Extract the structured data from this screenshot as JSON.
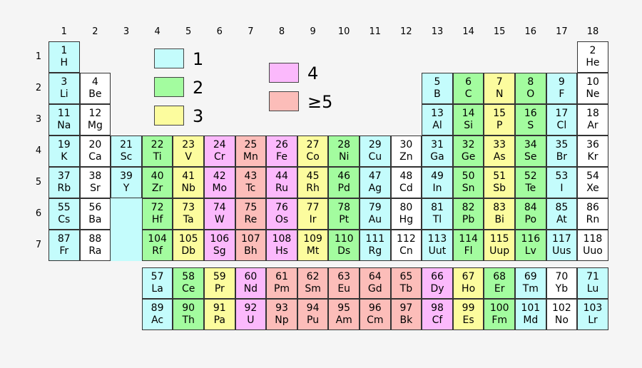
{
  "group_numbers": [
    "1",
    "2",
    "3",
    "4",
    "5",
    "6",
    "7",
    "8",
    "9",
    "10",
    "11",
    "12",
    "13",
    "14",
    "15",
    "16",
    "17",
    "18"
  ],
  "period_numbers": [
    "1",
    "2",
    "3",
    "4",
    "5",
    "6",
    "7"
  ],
  "legend": [
    {
      "label": "1",
      "cat": 1
    },
    {
      "label": "2",
      "cat": 2
    },
    {
      "label": "3",
      "cat": 3
    },
    {
      "label": "4",
      "cat": 4
    },
    {
      "label": "≥5",
      "cat": 5
    }
  ],
  "colors": {
    "0": "#ffffff",
    "1": "#c4fcfc",
    "2": "#a3fc9f",
    "3": "#fcfc9e",
    "4": "#fbb9fc",
    "5": "#fcbdb9"
  },
  "elements": [
    {
      "num": "1",
      "sym": "H",
      "period": 1,
      "group": 1,
      "cat": 1
    },
    {
      "num": "2",
      "sym": "He",
      "period": 1,
      "group": 18,
      "cat": 0
    },
    {
      "num": "3",
      "sym": "Li",
      "period": 2,
      "group": 1,
      "cat": 1
    },
    {
      "num": "4",
      "sym": "Be",
      "period": 2,
      "group": 2,
      "cat": 0
    },
    {
      "num": "5",
      "sym": "B",
      "period": 2,
      "group": 13,
      "cat": 1
    },
    {
      "num": "6",
      "sym": "C",
      "period": 2,
      "group": 14,
      "cat": 2
    },
    {
      "num": "7",
      "sym": "N",
      "period": 2,
      "group": 15,
      "cat": 3
    },
    {
      "num": "8",
      "sym": "O",
      "period": 2,
      "group": 16,
      "cat": 2
    },
    {
      "num": "9",
      "sym": "F",
      "period": 2,
      "group": 17,
      "cat": 1
    },
    {
      "num": "10",
      "sym": "Ne",
      "period": 2,
      "group": 18,
      "cat": 0
    },
    {
      "num": "11",
      "sym": "Na",
      "period": 3,
      "group": 1,
      "cat": 1
    },
    {
      "num": "12",
      "sym": "Mg",
      "period": 3,
      "group": 2,
      "cat": 0
    },
    {
      "num": "13",
      "sym": "Al",
      "period": 3,
      "group": 13,
      "cat": 1
    },
    {
      "num": "14",
      "sym": "Si",
      "period": 3,
      "group": 14,
      "cat": 2
    },
    {
      "num": "15",
      "sym": "P",
      "period": 3,
      "group": 15,
      "cat": 3
    },
    {
      "num": "16",
      "sym": "S",
      "period": 3,
      "group": 16,
      "cat": 2
    },
    {
      "num": "17",
      "sym": "Cl",
      "period": 3,
      "group": 17,
      "cat": 1
    },
    {
      "num": "18",
      "sym": "Ar",
      "period": 3,
      "group": 18,
      "cat": 0
    },
    {
      "num": "19",
      "sym": "K",
      "period": 4,
      "group": 1,
      "cat": 1
    },
    {
      "num": "20",
      "sym": "Ca",
      "period": 4,
      "group": 2,
      "cat": 0
    },
    {
      "num": "21",
      "sym": "Sc",
      "period": 4,
      "group": 3,
      "cat": 1
    },
    {
      "num": "22",
      "sym": "Ti",
      "period": 4,
      "group": 4,
      "cat": 2
    },
    {
      "num": "23",
      "sym": "V",
      "period": 4,
      "group": 5,
      "cat": 3
    },
    {
      "num": "24",
      "sym": "Cr",
      "period": 4,
      "group": 6,
      "cat": 4
    },
    {
      "num": "25",
      "sym": "Mn",
      "period": 4,
      "group": 7,
      "cat": 5
    },
    {
      "num": "26",
      "sym": "Fe",
      "period": 4,
      "group": 8,
      "cat": 4
    },
    {
      "num": "27",
      "sym": "Co",
      "period": 4,
      "group": 9,
      "cat": 3
    },
    {
      "num": "28",
      "sym": "Ni",
      "period": 4,
      "group": 10,
      "cat": 2
    },
    {
      "num": "29",
      "sym": "Cu",
      "period": 4,
      "group": 11,
      "cat": 1
    },
    {
      "num": "30",
      "sym": "Zn",
      "period": 4,
      "group": 12,
      "cat": 0
    },
    {
      "num": "31",
      "sym": "Ga",
      "period": 4,
      "group": 13,
      "cat": 1
    },
    {
      "num": "32",
      "sym": "Ge",
      "period": 4,
      "group": 14,
      "cat": 2
    },
    {
      "num": "33",
      "sym": "As",
      "period": 4,
      "group": 15,
      "cat": 3
    },
    {
      "num": "34",
      "sym": "Se",
      "period": 4,
      "group": 16,
      "cat": 2
    },
    {
      "num": "35",
      "sym": "Br",
      "period": 4,
      "group": 17,
      "cat": 1
    },
    {
      "num": "36",
      "sym": "Kr",
      "period": 4,
      "group": 18,
      "cat": 0
    },
    {
      "num": "37",
      "sym": "Rb",
      "period": 5,
      "group": 1,
      "cat": 1
    },
    {
      "num": "38",
      "sym": "Sr",
      "period": 5,
      "group": 2,
      "cat": 0
    },
    {
      "num": "39",
      "sym": "Y",
      "period": 5,
      "group": 3,
      "cat": 1
    },
    {
      "num": "40",
      "sym": "Zr",
      "period": 5,
      "group": 4,
      "cat": 2
    },
    {
      "num": "41",
      "sym": "Nb",
      "period": 5,
      "group": 5,
      "cat": 3
    },
    {
      "num": "42",
      "sym": "Mo",
      "period": 5,
      "group": 6,
      "cat": 4
    },
    {
      "num": "43",
      "sym": "Tc",
      "period": 5,
      "group": 7,
      "cat": 5
    },
    {
      "num": "44",
      "sym": "Ru",
      "period": 5,
      "group": 8,
      "cat": 4
    },
    {
      "num": "45",
      "sym": "Rh",
      "period": 5,
      "group": 9,
      "cat": 3
    },
    {
      "num": "46",
      "sym": "Pd",
      "period": 5,
      "group": 10,
      "cat": 2
    },
    {
      "num": "47",
      "sym": "Ag",
      "period": 5,
      "group": 11,
      "cat": 1
    },
    {
      "num": "48",
      "sym": "Cd",
      "period": 5,
      "group": 12,
      "cat": 0
    },
    {
      "num": "49",
      "sym": "In",
      "period": 5,
      "group": 13,
      "cat": 1
    },
    {
      "num": "50",
      "sym": "Sn",
      "period": 5,
      "group": 14,
      "cat": 2
    },
    {
      "num": "51",
      "sym": "Sb",
      "period": 5,
      "group": 15,
      "cat": 3
    },
    {
      "num": "52",
      "sym": "Te",
      "period": 5,
      "group": 16,
      "cat": 2
    },
    {
      "num": "53",
      "sym": "I",
      "period": 5,
      "group": 17,
      "cat": 1
    },
    {
      "num": "54",
      "sym": "Xe",
      "period": 5,
      "group": 18,
      "cat": 0
    },
    {
      "num": "55",
      "sym": "Cs",
      "period": 6,
      "group": 1,
      "cat": 1
    },
    {
      "num": "56",
      "sym": "Ba",
      "period": 6,
      "group": 2,
      "cat": 0
    },
    {
      "num": "72",
      "sym": "Hf",
      "period": 6,
      "group": 4,
      "cat": 2
    },
    {
      "num": "73",
      "sym": "Ta",
      "period": 6,
      "group": 5,
      "cat": 3
    },
    {
      "num": "74",
      "sym": "W",
      "period": 6,
      "group": 6,
      "cat": 4
    },
    {
      "num": "75",
      "sym": "Re",
      "period": 6,
      "group": 7,
      "cat": 5
    },
    {
      "num": "76",
      "sym": "Os",
      "period": 6,
      "group": 8,
      "cat": 4
    },
    {
      "num": "77",
      "sym": "Ir",
      "period": 6,
      "group": 9,
      "cat": 3
    },
    {
      "num": "78",
      "sym": "Pt",
      "period": 6,
      "group": 10,
      "cat": 2
    },
    {
      "num": "79",
      "sym": "Au",
      "period": 6,
      "group": 11,
      "cat": 1
    },
    {
      "num": "80",
      "sym": "Hg",
      "period": 6,
      "group": 12,
      "cat": 0
    },
    {
      "num": "81",
      "sym": "Tl",
      "period": 6,
      "group": 13,
      "cat": 1
    },
    {
      "num": "82",
      "sym": "Pb",
      "period": 6,
      "group": 14,
      "cat": 2
    },
    {
      "num": "83",
      "sym": "Bi",
      "period": 6,
      "group": 15,
      "cat": 3
    },
    {
      "num": "84",
      "sym": "Po",
      "period": 6,
      "group": 16,
      "cat": 2
    },
    {
      "num": "85",
      "sym": "At",
      "period": 6,
      "group": 17,
      "cat": 1
    },
    {
      "num": "86",
      "sym": "Rn",
      "period": 6,
      "group": 18,
      "cat": 0
    },
    {
      "num": "87",
      "sym": "Fr",
      "period": 7,
      "group": 1,
      "cat": 1
    },
    {
      "num": "88",
      "sym": "Ra",
      "period": 7,
      "group": 2,
      "cat": 0
    },
    {
      "num": "104",
      "sym": "Rf",
      "period": 7,
      "group": 4,
      "cat": 2
    },
    {
      "num": "105",
      "sym": "Db",
      "period": 7,
      "group": 5,
      "cat": 3
    },
    {
      "num": "106",
      "sym": "Sg",
      "period": 7,
      "group": 6,
      "cat": 4
    },
    {
      "num": "107",
      "sym": "Bh",
      "period": 7,
      "group": 7,
      "cat": 5
    },
    {
      "num": "108",
      "sym": "Hs",
      "period": 7,
      "group": 8,
      "cat": 4
    },
    {
      "num": "109",
      "sym": "Mt",
      "period": 7,
      "group": 9,
      "cat": 3
    },
    {
      "num": "110",
      "sym": "Ds",
      "period": 7,
      "group": 10,
      "cat": 2
    },
    {
      "num": "111",
      "sym": "Rg",
      "period": 7,
      "group": 11,
      "cat": 1
    },
    {
      "num": "112",
      "sym": "Cn",
      "period": 7,
      "group": 12,
      "cat": 0
    },
    {
      "num": "113",
      "sym": "Uut",
      "period": 7,
      "group": 13,
      "cat": 1
    },
    {
      "num": "114",
      "sym": "Fl",
      "period": 7,
      "group": 14,
      "cat": 2
    },
    {
      "num": "115",
      "sym": "Uup",
      "period": 7,
      "group": 15,
      "cat": 3
    },
    {
      "num": "116",
      "sym": "Lv",
      "period": 7,
      "group": 16,
      "cat": 2
    },
    {
      "num": "117",
      "sym": "Uus",
      "period": 7,
      "group": 17,
      "cat": 1
    },
    {
      "num": "118",
      "sym": "Uuo",
      "period": 7,
      "group": 18,
      "cat": 0
    }
  ],
  "lanthanides": [
    {
      "num": "57",
      "sym": "La",
      "cat": 1
    },
    {
      "num": "58",
      "sym": "Ce",
      "cat": 2
    },
    {
      "num": "59",
      "sym": "Pr",
      "cat": 3
    },
    {
      "num": "60",
      "sym": "Nd",
      "cat": 4
    },
    {
      "num": "61",
      "sym": "Pm",
      "cat": 5
    },
    {
      "num": "62",
      "sym": "Sm",
      "cat": 5
    },
    {
      "num": "63",
      "sym": "Eu",
      "cat": 5
    },
    {
      "num": "64",
      "sym": "Gd",
      "cat": 5
    },
    {
      "num": "65",
      "sym": "Tb",
      "cat": 5
    },
    {
      "num": "66",
      "sym": "Dy",
      "cat": 4
    },
    {
      "num": "67",
      "sym": "Ho",
      "cat": 3
    },
    {
      "num": "68",
      "sym": "Er",
      "cat": 2
    },
    {
      "num": "69",
      "sym": "Tm",
      "cat": 1
    },
    {
      "num": "70",
      "sym": "Yb",
      "cat": 0
    },
    {
      "num": "71",
      "sym": "Lu",
      "cat": 1
    }
  ],
  "actinides": [
    {
      "num": "89",
      "sym": "Ac",
      "cat": 1
    },
    {
      "num": "90",
      "sym": "Th",
      "cat": 2
    },
    {
      "num": "91",
      "sym": "Pa",
      "cat": 3
    },
    {
      "num": "92",
      "sym": "U",
      "cat": 4
    },
    {
      "num": "93",
      "sym": "Np",
      "cat": 5
    },
    {
      "num": "94",
      "sym": "Pu",
      "cat": 5
    },
    {
      "num": "95",
      "sym": "Am",
      "cat": 5
    },
    {
      "num": "96",
      "sym": "Cm",
      "cat": 5
    },
    {
      "num": "97",
      "sym": "Bk",
      "cat": 5
    },
    {
      "num": "98",
      "sym": "Cf",
      "cat": 4
    },
    {
      "num": "99",
      "sym": "Es",
      "cat": 3
    },
    {
      "num": "100",
      "sym": "Fm",
      "cat": 2
    },
    {
      "num": "101",
      "sym": "Md",
      "cat": 1
    },
    {
      "num": "102",
      "sym": "No",
      "cat": 0
    },
    {
      "num": "103",
      "sym": "Lr",
      "cat": 1
    }
  ]
}
